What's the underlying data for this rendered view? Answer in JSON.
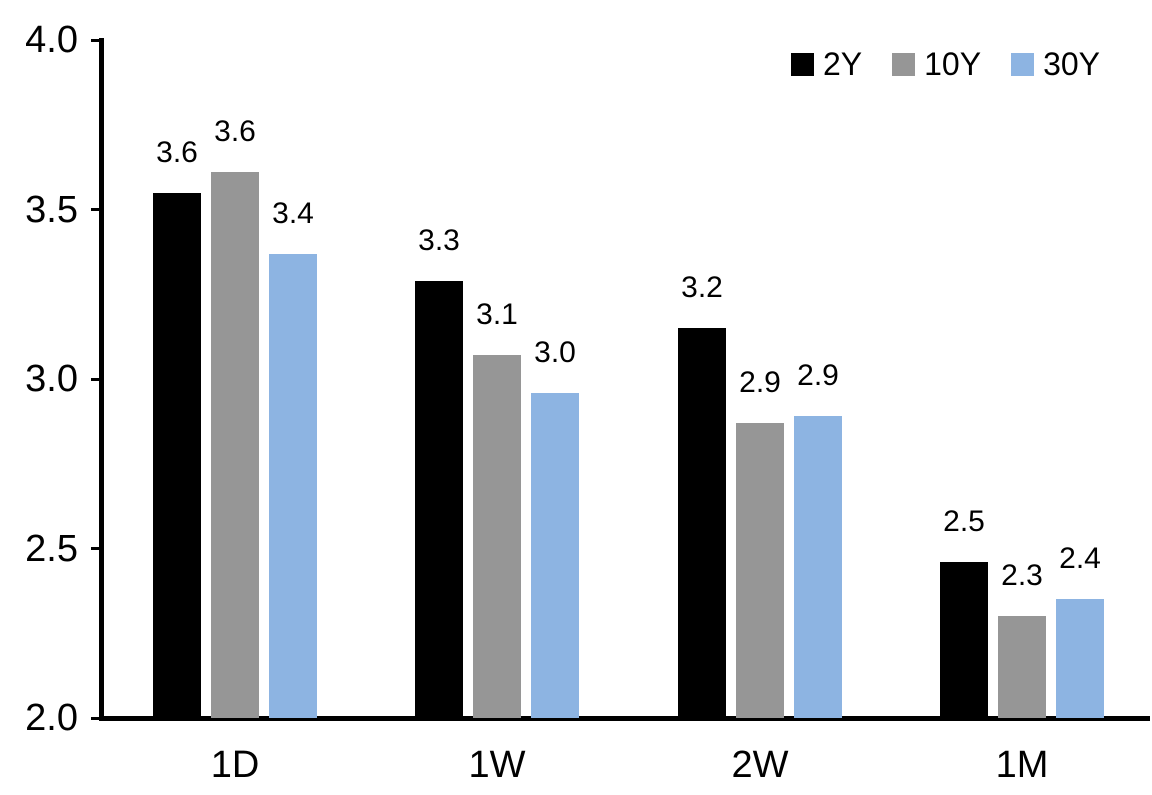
{
  "chart_data": {
    "type": "bar",
    "title": "",
    "xlabel": "",
    "ylabel": "",
    "categories": [
      "1D",
      "1W",
      "2W",
      "1M"
    ],
    "series": [
      {
        "name": "2Y",
        "color": "#000000",
        "values": [
          3.55,
          3.29,
          3.15,
          2.46
        ],
        "labels": [
          "3.6",
          "3.3",
          "3.2",
          "2.5"
        ]
      },
      {
        "name": "10Y",
        "color": "#969696",
        "values": [
          3.61,
          3.07,
          2.87,
          2.3
        ],
        "labels": [
          "3.6",
          "3.1",
          "2.9",
          "2.3"
        ]
      },
      {
        "name": "30Y",
        "color": "#8DB4E2",
        "values": [
          3.37,
          2.96,
          2.89,
          2.35
        ],
        "labels": [
          "3.4",
          "3.0",
          "2.9",
          "2.4"
        ]
      }
    ],
    "ylim": [
      2.0,
      4.0
    ],
    "ytick_values": [
      2.0,
      2.5,
      3.0,
      3.5,
      4.0
    ],
    "ytick_labels": [
      "2.0",
      "2.5",
      "3.0",
      "3.5",
      "4.0"
    ],
    "grid": false,
    "legend_position": "top-right",
    "axis_color": "#000000",
    "background_color": "#ffffff"
  }
}
